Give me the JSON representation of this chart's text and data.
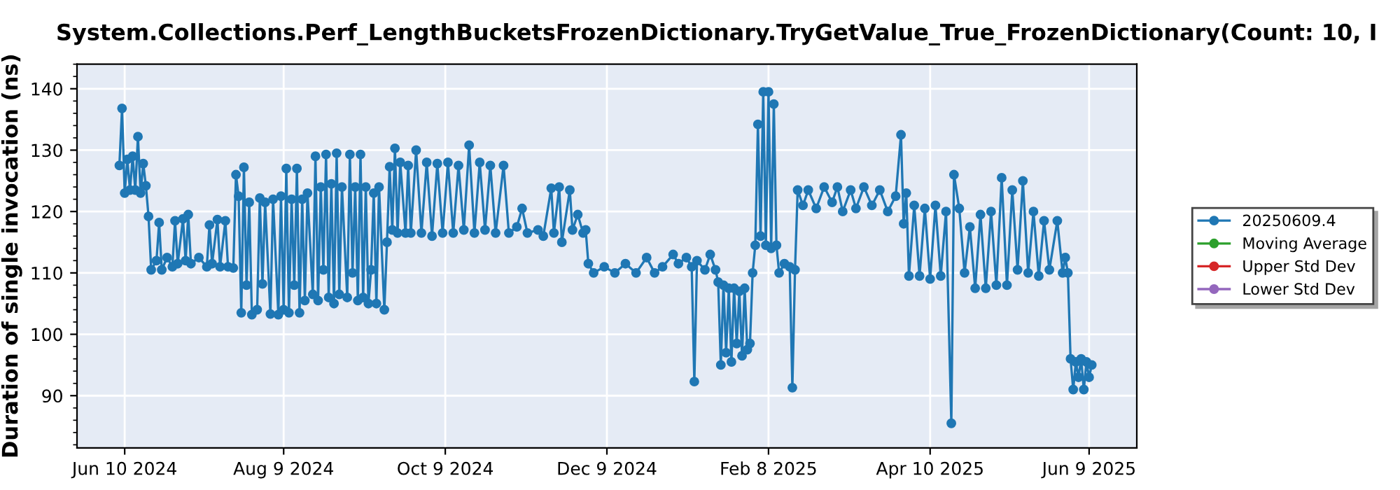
{
  "chart_data": {
    "type": "line",
    "title": "System.Collections.Perf_LengthBucketsFrozenDictionary.TryGetValue_True_FrozenDictionary(Count: 10, I",
    "ylabel": "Duration of single invocation (ns)",
    "xlim": [
      "2024-05-23",
      "2025-06-27"
    ],
    "xticks": [
      {
        "value": "2024-06-10",
        "label": "Jun 10 2024"
      },
      {
        "value": "2024-08-09",
        "label": "Aug 9 2024"
      },
      {
        "value": "2024-10-09",
        "label": "Oct 9 2024"
      },
      {
        "value": "2024-12-09",
        "label": "Dec 9 2024"
      },
      {
        "value": "2025-02-08",
        "label": "Feb 8 2025"
      },
      {
        "value": "2025-04-10",
        "label": "Apr 10 2025"
      },
      {
        "value": "2025-06-09",
        "label": "Jun 9 2025"
      }
    ],
    "ylim": [
      81.5,
      144
    ],
    "yticks": [
      90,
      100,
      110,
      120,
      130,
      140
    ],
    "grid": true,
    "legend": "right",
    "marker": "circle",
    "line_style": "solid",
    "series": [
      {
        "name": "20250609.4",
        "color": "#1f77b4",
        "x": [
          "2024-06-08",
          "2024-06-09",
          "2024-06-10",
          "2024-06-11",
          "2024-06-12",
          "2024-06-13",
          "2024-06-14",
          "2024-06-15",
          "2024-06-16",
          "2024-06-17",
          "2024-06-18",
          "2024-06-19",
          "2024-06-20",
          "2024-06-22",
          "2024-06-23",
          "2024-06-24",
          "2024-06-26",
          "2024-06-28",
          "2024-06-29",
          "2024-06-30",
          "2024-07-02",
          "2024-07-03",
          "2024-07-04",
          "2024-07-05",
          "2024-07-08",
          "2024-07-11",
          "2024-07-12",
          "2024-07-13",
          "2024-07-15",
          "2024-07-16",
          "2024-07-18",
          "2024-07-19",
          "2024-07-21",
          "2024-07-22",
          "2024-07-23",
          "2024-07-24",
          "2024-07-25",
          "2024-07-26",
          "2024-07-27",
          "2024-07-28",
          "2024-07-30",
          "2024-07-31",
          "2024-08-01",
          "2024-08-02",
          "2024-08-04",
          "2024-08-05",
          "2024-08-07",
          "2024-08-08",
          "2024-08-09",
          "2024-08-10",
          "2024-08-11",
          "2024-08-12",
          "2024-08-13",
          "2024-08-14",
          "2024-08-15",
          "2024-08-16",
          "2024-08-17",
          "2024-08-18",
          "2024-08-20",
          "2024-08-21",
          "2024-08-22",
          "2024-08-23",
          "2024-08-24",
          "2024-08-25",
          "2024-08-26",
          "2024-08-27",
          "2024-08-28",
          "2024-08-29",
          "2024-08-30",
          "2024-08-31",
          "2024-09-02",
          "2024-09-03",
          "2024-09-04",
          "2024-09-05",
          "2024-09-06",
          "2024-09-07",
          "2024-09-08",
          "2024-09-09",
          "2024-09-10",
          "2024-09-11",
          "2024-09-12",
          "2024-09-13",
          "2024-09-14",
          "2024-09-16",
          "2024-09-17",
          "2024-09-18",
          "2024-09-19",
          "2024-09-20",
          "2024-09-21",
          "2024-09-22",
          "2024-09-24",
          "2024-09-25",
          "2024-09-26",
          "2024-09-28",
          "2024-09-30",
          "2024-10-02",
          "2024-10-04",
          "2024-10-06",
          "2024-10-08",
          "2024-10-10",
          "2024-10-12",
          "2024-10-14",
          "2024-10-16",
          "2024-10-18",
          "2024-10-20",
          "2024-10-22",
          "2024-10-24",
          "2024-10-26",
          "2024-10-28",
          "2024-10-31",
          "2024-11-02",
          "2024-11-05",
          "2024-11-07",
          "2024-11-09",
          "2024-11-13",
          "2024-11-15",
          "2024-11-18",
          "2024-11-19",
          "2024-11-21",
          "2024-11-22",
          "2024-11-25",
          "2024-11-26",
          "2024-11-28",
          "2024-11-30",
          "2024-12-01",
          "2024-12-02",
          "2024-12-04",
          "2024-12-08",
          "2024-12-12",
          "2024-12-16",
          "2024-12-20",
          "2024-12-24",
          "2024-12-27",
          "2024-12-30",
          "2025-01-03",
          "2025-01-05",
          "2025-01-08",
          "2025-01-10",
          "2025-01-11",
          "2025-01-12",
          "2025-01-15",
          "2025-01-17",
          "2025-01-19",
          "2025-01-20",
          "2025-01-21",
          "2025-01-22",
          "2025-01-23",
          "2025-01-24",
          "2025-01-25",
          "2025-01-26",
          "2025-01-27",
          "2025-01-28",
          "2025-01-29",
          "2025-01-30",
          "2025-01-31",
          "2025-02-01",
          "2025-02-02",
          "2025-02-03",
          "2025-02-04",
          "2025-02-05",
          "2025-02-06",
          "2025-02-07",
          "2025-02-08",
          "2025-02-09",
          "2025-02-10",
          "2025-02-11",
          "2025-02-12",
          "2025-02-14",
          "2025-02-16",
          "2025-02-17",
          "2025-02-18",
          "2025-02-19",
          "2025-02-21",
          "2025-02-23",
          "2025-02-26",
          "2025-03-01",
          "2025-03-04",
          "2025-03-06",
          "2025-03-08",
          "2025-03-11",
          "2025-03-13",
          "2025-03-16",
          "2025-03-19",
          "2025-03-22",
          "2025-03-25",
          "2025-03-28",
          "2025-03-30",
          "2025-03-31",
          "2025-04-01",
          "2025-04-02",
          "2025-04-04",
          "2025-04-06",
          "2025-04-08",
          "2025-04-10",
          "2025-04-12",
          "2025-04-14",
          "2025-04-16",
          "2025-04-18",
          "2025-04-19",
          "2025-04-21",
          "2025-04-23",
          "2025-04-25",
          "2025-04-27",
          "2025-04-29",
          "2025-05-01",
          "2025-05-03",
          "2025-05-05",
          "2025-05-07",
          "2025-05-09",
          "2025-05-11",
          "2025-05-13",
          "2025-05-15",
          "2025-05-17",
          "2025-05-19",
          "2025-05-21",
          "2025-05-23",
          "2025-05-25",
          "2025-05-28",
          "2025-05-30",
          "2025-05-31",
          "2025-06-01",
          "2025-06-02",
          "2025-06-03",
          "2025-06-04",
          "2025-06-05",
          "2025-06-06",
          "2025-06-07",
          "2025-06-08",
          "2025-06-09",
          "2025-06-10"
        ],
        "values": [
          127.5,
          136.8,
          123.0,
          128.5,
          123.5,
          129.0,
          123.5,
          132.2,
          123.0,
          127.8,
          124.2,
          119.2,
          110.5,
          112.0,
          118.2,
          110.5,
          112.5,
          111.0,
          118.5,
          111.5,
          118.8,
          112.0,
          119.5,
          111.5,
          112.5,
          111.0,
          117.8,
          111.5,
          118.7,
          111.0,
          118.5,
          111.0,
          110.8,
          126.0,
          122.5,
          103.5,
          127.2,
          108.0,
          121.5,
          103.2,
          104.0,
          122.2,
          108.2,
          121.5,
          103.3,
          122.0,
          103.2,
          122.5,
          104.0,
          127.0,
          103.5,
          122.0,
          108.0,
          127.0,
          103.5,
          122.0,
          105.5,
          123.0,
          106.5,
          129.0,
          105.5,
          124.0,
          110.5,
          129.3,
          106.0,
          124.5,
          105.0,
          129.5,
          106.5,
          124.0,
          106.0,
          129.3,
          110.0,
          124.0,
          105.5,
          129.3,
          106.0,
          124.0,
          105.0,
          110.5,
          123.0,
          105.0,
          124.0,
          104.0,
          115.0,
          127.3,
          117.0,
          130.3,
          116.5,
          128.0,
          116.5,
          127.5,
          116.5,
          130.0,
          116.5,
          128.0,
          116.0,
          127.8,
          116.5,
          128.0,
          116.5,
          127.5,
          117.0,
          130.8,
          116.5,
          128.0,
          117.0,
          127.5,
          116.5,
          127.5,
          116.5,
          117.5,
          120.5,
          116.5,
          117.0,
          116.0,
          123.8,
          116.5,
          124.0,
          115.0,
          123.5,
          117.0,
          119.5,
          116.5,
          117.0,
          111.5,
          110.0,
          111.0,
          110.0,
          111.5,
          110.0,
          112.5,
          110.0,
          111.0,
          113.0,
          111.5,
          112.5,
          111.0,
          92.3,
          112.0,
          110.5,
          113.0,
          110.5,
          108.5,
          95.0,
          108.0,
          97.0,
          107.5,
          95.5,
          107.5,
          98.5,
          107.0,
          96.5,
          107.5,
          97.5,
          98.5,
          110.0,
          114.5,
          134.2,
          116.0,
          139.5,
          114.5,
          139.5,
          114.0,
          137.5,
          114.5,
          110.0,
          111.5,
          111.0,
          91.3,
          110.5,
          123.5,
          121.0,
          123.5,
          120.5,
          124.0,
          121.5,
          124.0,
          120.0,
          123.5,
          120.5,
          124.0,
          121.0,
          123.5,
          120.0,
          122.5,
          132.5,
          118.0,
          123.0,
          109.5,
          121.0,
          109.5,
          120.5,
          109.0,
          121.0,
          109.5,
          120.0,
          85.5,
          126.0,
          120.5,
          110.0,
          117.5,
          107.5,
          119.5,
          107.5,
          120.0,
          108.0,
          125.5,
          108.0,
          123.5,
          110.5,
          125.0,
          110.0,
          120.0,
          109.5,
          118.5,
          110.5,
          118.5,
          110.0,
          112.5,
          110.0,
          96.0,
          91.0,
          95.5,
          93.0,
          96.0,
          91.0,
          95.5,
          93.0,
          95.0
        ]
      },
      {
        "name": "Moving Average",
        "color": "#2ca02c"
      },
      {
        "name": "Upper Std Dev",
        "color": "#d62728"
      },
      {
        "name": "Lower Std Dev",
        "color": "#9467bd"
      }
    ]
  }
}
